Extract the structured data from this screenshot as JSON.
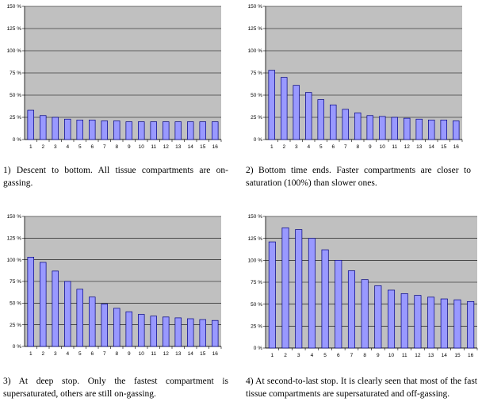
{
  "colors": {
    "plot_bg": "#c0c0c0",
    "bar_fill": "#9999ff",
    "bar_stroke": "#000080",
    "grid": "#000000"
  },
  "panels": [
    {
      "caption": "1) Descent to bottom. All tissue compartments are on-gassing."
    },
    {
      "caption": "2) Bottom time ends. Faster compartments are closer to saturation (100%) than slower ones."
    },
    {
      "caption": "3) At deep stop. Only the fastest compartment is supersaturated, others are still on-gassing."
    },
    {
      "caption": "4) At second-to-last stop. It is clearly seen that most of the fast tissue compartments are supersaturated and off-gassing."
    }
  ],
  "chart_data": [
    {
      "type": "bar",
      "categories": [
        "1",
        "2",
        "3",
        "4",
        "5",
        "6",
        "7",
        "8",
        "9",
        "10",
        "11",
        "12",
        "13",
        "14",
        "15",
        "16"
      ],
      "values": [
        33,
        27,
        25,
        23,
        22,
        22,
        21,
        21,
        20,
        20,
        20,
        20,
        20,
        20,
        20,
        20
      ],
      "yticks": [
        "0 %",
        "25 %",
        "50 %",
        "75 %",
        "100 %",
        "125 %",
        "150 %"
      ],
      "ylim": [
        0,
        150
      ],
      "grid": true
    },
    {
      "type": "bar",
      "categories": [
        "1",
        "2",
        "3",
        "4",
        "5",
        "6",
        "7",
        "8",
        "9",
        "10",
        "11",
        "12",
        "13",
        "14",
        "15",
        "16"
      ],
      "values": [
        78,
        70,
        61,
        53,
        45,
        39,
        34,
        30,
        27,
        26,
        25,
        24,
        23,
        22,
        22,
        21
      ],
      "yticks": [
        "0 %",
        "25 %",
        "50 %",
        "75 %",
        "100 %",
        "125 %",
        "150 %"
      ],
      "ylim": [
        0,
        150
      ],
      "grid": true
    },
    {
      "type": "bar",
      "categories": [
        "1",
        "2",
        "3",
        "4",
        "5",
        "6",
        "7",
        "8",
        "9",
        "10",
        "11",
        "12",
        "13",
        "14",
        "15",
        "16"
      ],
      "values": [
        103,
        97,
        87,
        75,
        66,
        57,
        49,
        44,
        40,
        37,
        35,
        34,
        33,
        32,
        31,
        30
      ],
      "yticks": [
        "0 %",
        "25 %",
        "50 %",
        "75 %",
        "100 %",
        "125 %",
        "150 %"
      ],
      "ylim": [
        0,
        150
      ],
      "grid": true
    },
    {
      "type": "bar",
      "categories": [
        "1",
        "2",
        "3",
        "4",
        "5",
        "6",
        "7",
        "8",
        "9",
        "10",
        "11",
        "12",
        "13",
        "14",
        "15",
        "16"
      ],
      "values": [
        121,
        137,
        135,
        125,
        112,
        100,
        88,
        78,
        71,
        66,
        62,
        60,
        58,
        56,
        55,
        53
      ],
      "yticks": [
        "0 %",
        "25 %",
        "50 %",
        "75 %",
        "100 %",
        "125 %",
        "150 %"
      ],
      "ylim": [
        0,
        150
      ],
      "grid": true
    }
  ]
}
